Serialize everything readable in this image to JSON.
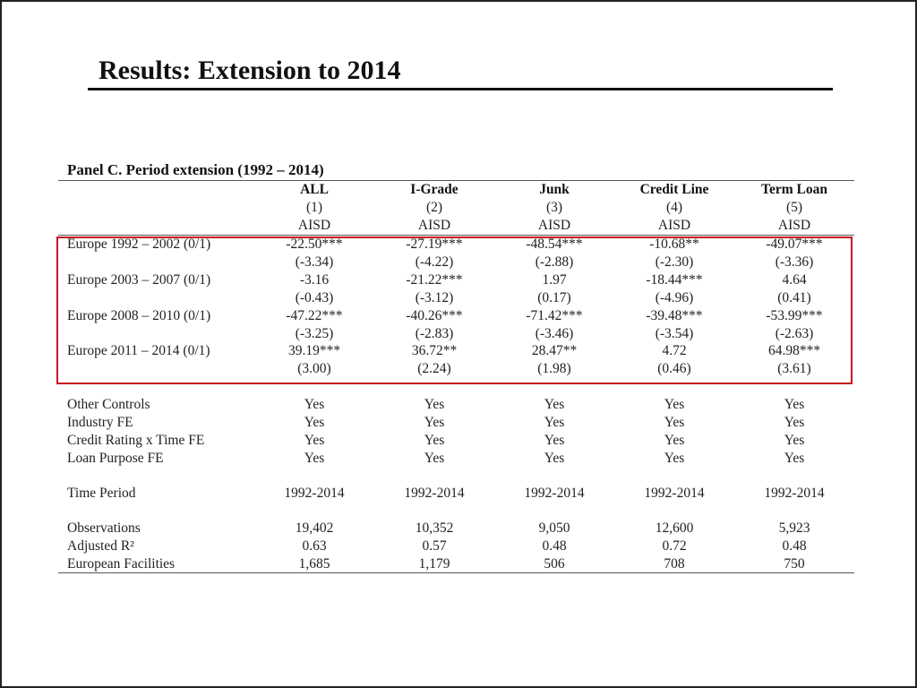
{
  "slide": {
    "title": "Results: Extension to 2014"
  },
  "table": {
    "panel_title": "Panel C. Period extension (1992 – 2014)",
    "columns": [
      {
        "name": "ALL",
        "number": "(1)",
        "dep_var": "AISD"
      },
      {
        "name": "I-Grade",
        "number": "(2)",
        "dep_var": "AISD"
      },
      {
        "name": "Junk",
        "number": "(3)",
        "dep_var": "AISD"
      },
      {
        "name": "Credit Line",
        "number": "(4)",
        "dep_var": "AISD"
      },
      {
        "name": "Term Loan",
        "number": "(5)",
        "dep_var": "AISD"
      }
    ],
    "coef_rows": [
      {
        "label": "Europe 1992 – 2002 (0/1)",
        "coefs": [
          "-22.50***",
          "-27.19***",
          "-48.54***",
          "-10.68**",
          "-49.07***"
        ],
        "tstats": [
          "(-3.34)",
          "(-4.22)",
          "(-2.88)",
          "(-2.30)",
          "(-3.36)"
        ]
      },
      {
        "label": "Europe 2003 – 2007 (0/1)",
        "coefs": [
          "-3.16",
          "-21.22***",
          "1.97",
          "-18.44***",
          "4.64"
        ],
        "tstats": [
          "(-0.43)",
          "(-3.12)",
          "(0.17)",
          "(-4.96)",
          "(0.41)"
        ]
      },
      {
        "label": "Europe 2008 – 2010 (0/1)",
        "coefs": [
          "-47.22***",
          "-40.26***",
          "-71.42***",
          "-39.48***",
          "-53.99***"
        ],
        "tstats": [
          "(-3.25)",
          "(-2.83)",
          "(-3.46)",
          "(-3.54)",
          "(-2.63)"
        ]
      },
      {
        "label": "Europe 2011 – 2014 (0/1)",
        "coefs": [
          "39.19***",
          "36.72**",
          "28.47**",
          "4.72",
          "64.98***"
        ],
        "tstats": [
          "(3.00)",
          "(2.24)",
          "(1.98)",
          "(0.46)",
          "(3.61)"
        ]
      }
    ],
    "control_rows": [
      {
        "label": "Other Controls",
        "values": [
          "Yes",
          "Yes",
          "Yes",
          "Yes",
          "Yes"
        ]
      },
      {
        "label": "Industry FE",
        "values": [
          "Yes",
          "Yes",
          "Yes",
          "Yes",
          "Yes"
        ]
      },
      {
        "label": "Credit Rating x Time FE",
        "values": [
          "Yes",
          "Yes",
          "Yes",
          "Yes",
          "Yes"
        ]
      },
      {
        "label": "Loan Purpose FE",
        "values": [
          "Yes",
          "Yes",
          "Yes",
          "Yes",
          "Yes"
        ]
      }
    ],
    "period_row": {
      "label": "Time Period",
      "values": [
        "1992-2014",
        "1992-2014",
        "1992-2014",
        "1992-2014",
        "1992-2014"
      ]
    },
    "stat_rows": [
      {
        "label": "Observations",
        "values": [
          "19,402",
          "10,352",
          "9,050",
          "12,600",
          "5,923"
        ]
      },
      {
        "label": "Adjusted R²",
        "values": [
          "0.63",
          "0.57",
          "0.48",
          "0.72",
          "0.48"
        ]
      },
      {
        "label": "European Facilities",
        "values": [
          "1,685",
          "1,179",
          "506",
          "708",
          "750"
        ]
      }
    ]
  },
  "colors": {
    "highlight_box": "#c8141e",
    "title_rule": "#111111"
  }
}
